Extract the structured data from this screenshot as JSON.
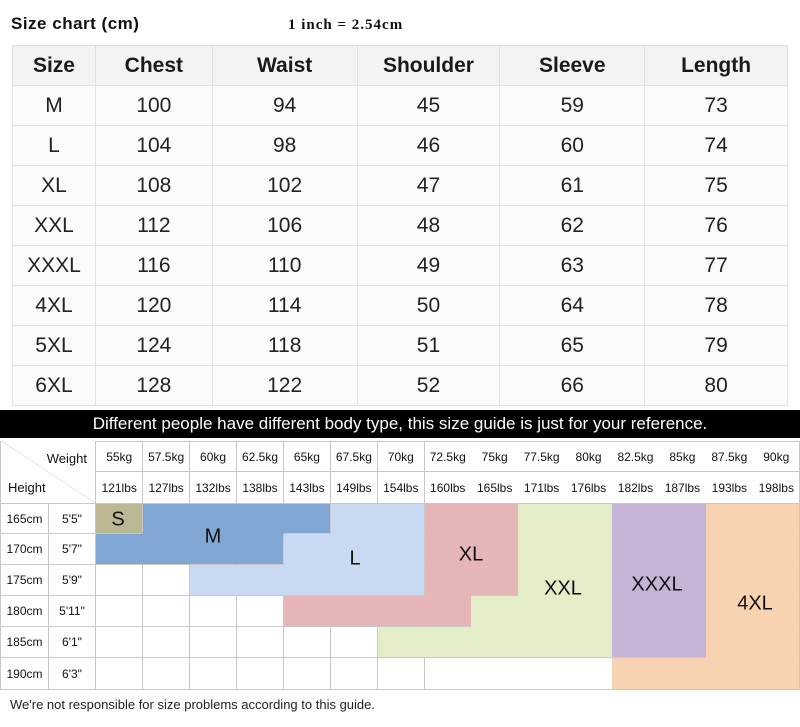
{
  "title": "Size chart (cm)",
  "inch_note": "1 inch = 2.54cm",
  "size_table": {
    "headers": [
      "Size",
      "Chest",
      "Waist",
      "Shoulder",
      "Sleeve",
      "Length"
    ],
    "rows": [
      [
        "M",
        "100",
        "94",
        "45",
        "59",
        "73"
      ],
      [
        "L",
        "104",
        "98",
        "46",
        "60",
        "74"
      ],
      [
        "XL",
        "108",
        "102",
        "47",
        "61",
        "75"
      ],
      [
        "XXL",
        "112",
        "106",
        "48",
        "62",
        "76"
      ],
      [
        "XXXL",
        "116",
        "110",
        "49",
        "63",
        "77"
      ],
      [
        "4XL",
        "120",
        "114",
        "50",
        "64",
        "78"
      ],
      [
        "5XL",
        "124",
        "118",
        "51",
        "65",
        "79"
      ],
      [
        "6XL",
        "128",
        "122",
        "52",
        "66",
        "80"
      ]
    ]
  },
  "banner": "Different people have different body type, this size guide is just for your reference.",
  "guide": {
    "weight_label": "Weight",
    "height_label": "Height",
    "kg": [
      "55kg",
      "57.5kg",
      "60kg",
      "62.5kg",
      "65kg",
      "67.5kg",
      "70kg",
      "72.5kg",
      "75kg",
      "77.5kg",
      "80kg",
      "82.5kg",
      "85kg",
      "87.5kg",
      "90kg"
    ],
    "lbs": [
      "121lbs",
      "127lbs",
      "132lbs",
      "138lbs",
      "143lbs",
      "149lbs",
      "154lbs",
      "160lbs",
      "165lbs",
      "171lbs",
      "176lbs",
      "182lbs",
      "187lbs",
      "193lbs",
      "198lbs"
    ],
    "heights_cm": [
      "165cm",
      "170cm",
      "175cm",
      "180cm",
      "185cm",
      "190cm"
    ],
    "heights_ft": [
      "5'5\"",
      "5'7\"",
      "5'9\"",
      "5'11\"",
      "6'1\"",
      "6'3\""
    ],
    "map": [
      [
        "S",
        "M",
        "M",
        "M",
        "M",
        "L",
        "L",
        "XL",
        "XL",
        "XXL",
        "XXL",
        "XXXL",
        "XXXL",
        "4XL",
        "4XL"
      ],
      [
        "M",
        "M",
        "M",
        "M",
        "L",
        "L",
        "L",
        "XL",
        "XL",
        "XXL",
        "XXL",
        "XXXL",
        "XXXL",
        "4XL",
        "4XL"
      ],
      [
        "",
        "",
        "L",
        "L",
        "L",
        "L",
        "L",
        "XL",
        "XL",
        "XXL",
        "XXL",
        "XXXL",
        "XXXL",
        "4XL",
        "4XL"
      ],
      [
        "",
        "",
        "",
        "",
        "XL",
        "XL",
        "XL",
        "XL",
        "XXL",
        "XXL",
        "XXL",
        "XXXL",
        "XXXL",
        "4XL",
        "4XL"
      ],
      [
        "",
        "",
        "",
        "",
        "",
        "",
        "XXL",
        "XXL",
        "XXL",
        "XXL",
        "XXL",
        "XXXL",
        "XXXL",
        "4XL",
        "4XL"
      ],
      [
        "",
        "",
        "",
        "",
        "",
        "",
        "",
        "",
        "",
        "",
        "",
        "4XL",
        "4XL",
        "4XL",
        "4XL"
      ]
    ],
    "size_labels": [
      "S",
      "M",
      "L",
      "XL",
      "XXL",
      "XXXL",
      "4XL"
    ],
    "colors": {
      "S": "#bcb793",
      "M": "#80a6d3",
      "L": "#c8d9f1",
      "XL": "#e6b5b7",
      "XXL": "#e3edc8",
      "XXXL": "#c5b4d6",
      "4XL": "#f8d3b1"
    }
  },
  "footer": "We're not responsible for size problems according to this guide."
}
